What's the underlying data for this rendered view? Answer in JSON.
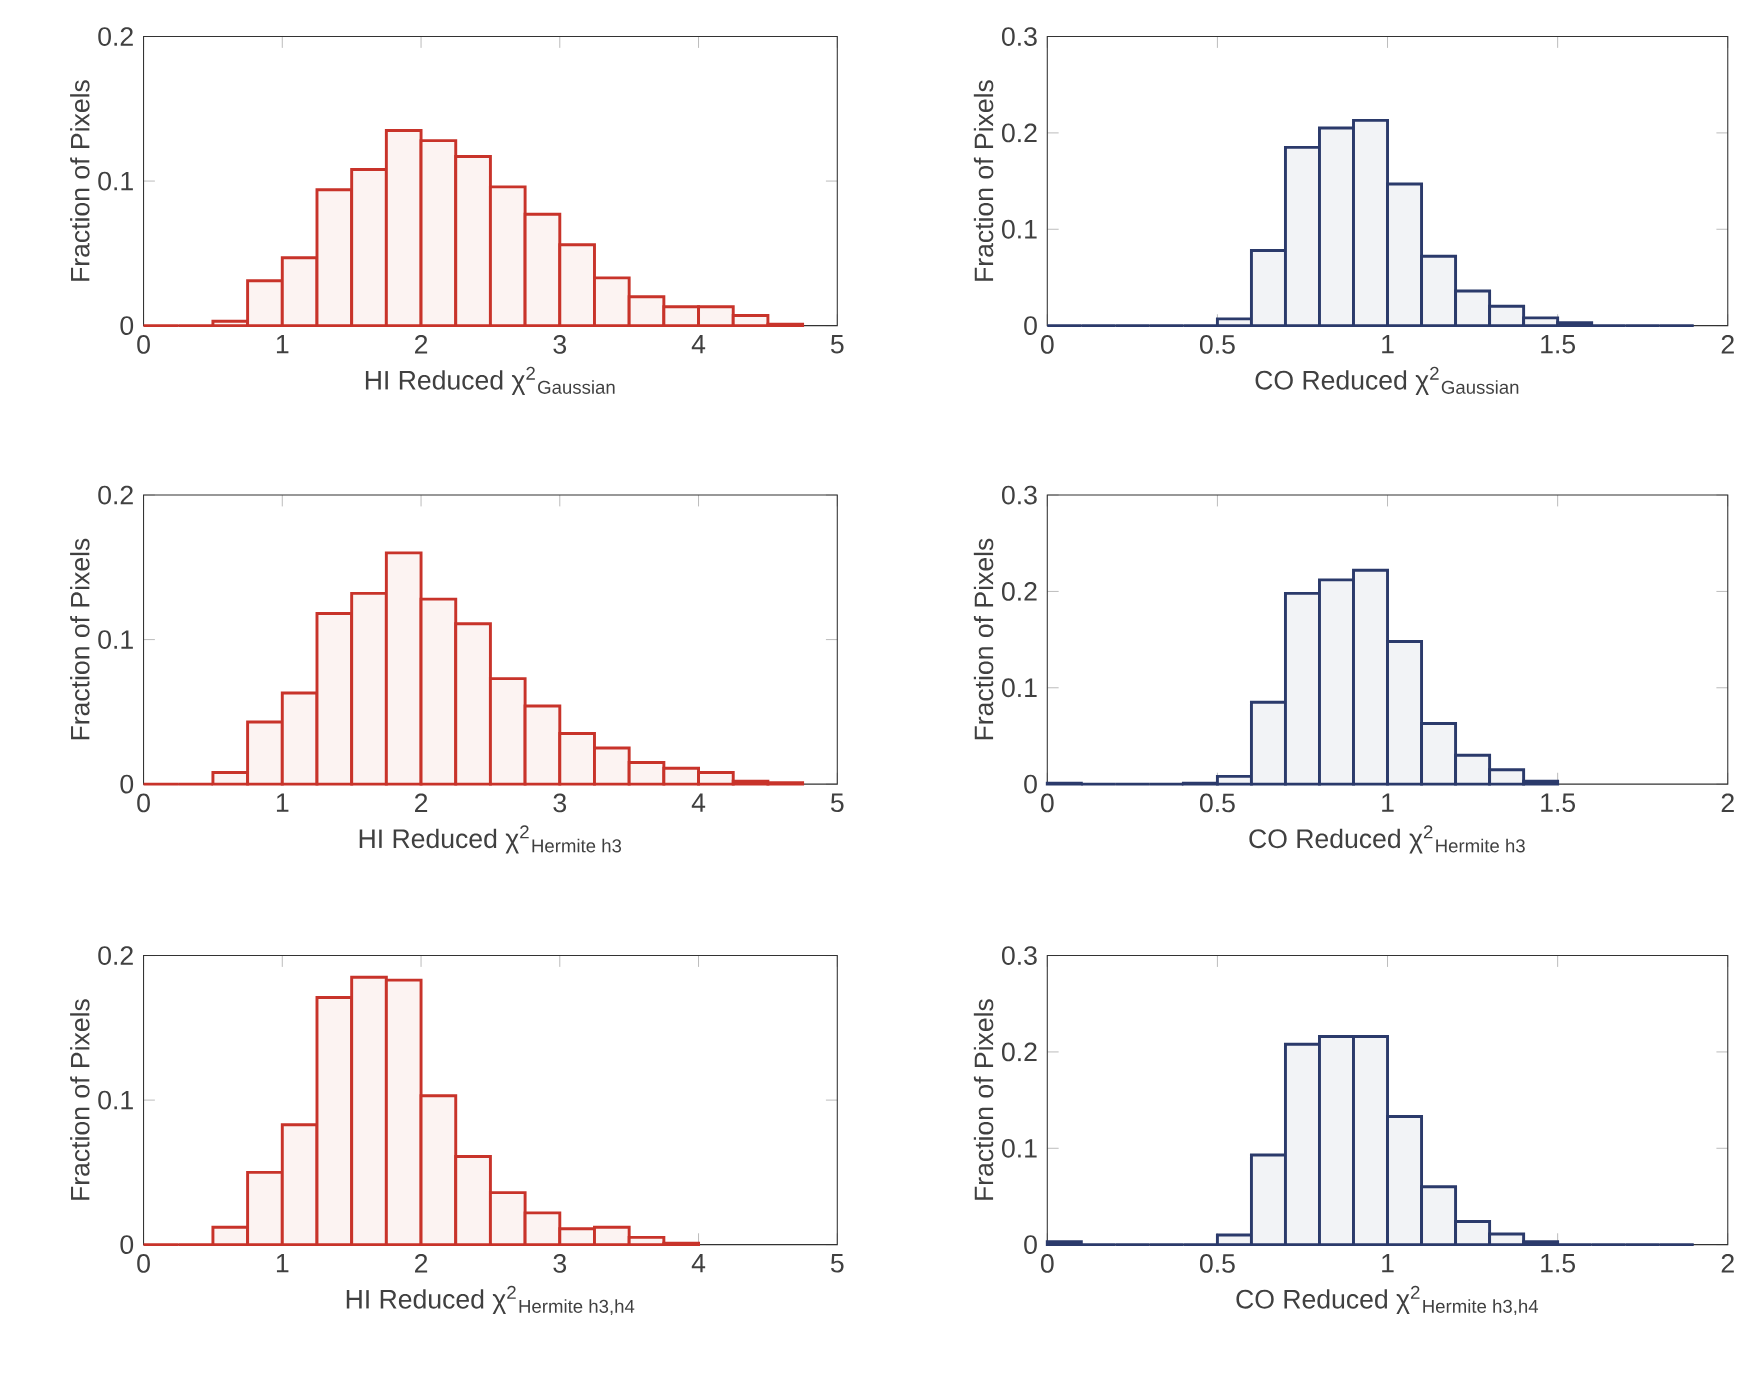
{
  "chart_data": [
    {
      "type": "histogram",
      "xlabel": "HI Reduced χ$^{2}$$_{Gaussian}$",
      "ylabel": "Fraction of Pixels",
      "color": "#c8332a",
      "bins": [
        0,
        0.25,
        0.5,
        0.75,
        1,
        1.25,
        1.5,
        1.75,
        2,
        2.25,
        2.5,
        2.75,
        3,
        3.25,
        3.5,
        3.75,
        4,
        4.25,
        4.5,
        4.75
      ],
      "values": [
        0,
        0,
        0.003,
        0.031,
        0.047,
        0.094,
        0.108,
        0.135,
        0.128,
        0.117,
        0.096,
        0.077,
        0.056,
        0.033,
        0.02,
        0.013,
        0.013,
        0.007,
        0.001
      ],
      "xlim": [
        0,
        5
      ],
      "ylim": [
        0,
        0.2
      ],
      "xticks": [
        0,
        1,
        2,
        3,
        4,
        5
      ],
      "yticks": [
        0,
        0.1,
        0.2
      ]
    },
    {
      "type": "histogram",
      "xlabel": "CO Reduced χ$^{2}$$_{Gaussian}$",
      "ylabel": "Fraction of Pixels",
      "color": "#2b3a6b",
      "bins": [
        0,
        0.1,
        0.2,
        0.3,
        0.4,
        0.5,
        0.6,
        0.7,
        0.8,
        0.9,
        1,
        1.1,
        1.2,
        1.3,
        1.4,
        1.5,
        1.6,
        1.7,
        1.8,
        1.9
      ],
      "values": [
        0,
        0,
        0,
        0,
        0,
        0.007,
        0.078,
        0.185,
        0.205,
        0.213,
        0.147,
        0.072,
        0.036,
        0.02,
        0.008,
        0.003,
        0,
        0,
        0
      ],
      "xlim": [
        0,
        2
      ],
      "ylim": [
        0,
        0.3
      ],
      "xticks": [
        0,
        0.5,
        1,
        1.5,
        2
      ],
      "yticks": [
        0,
        0.1,
        0.2,
        0.3
      ]
    },
    {
      "type": "histogram",
      "xlabel": "HI Reduced χ$^{2}$$_{Hermite h3}$",
      "ylabel": "Fraction of Pixels",
      "color": "#c8332a",
      "bins": [
        0,
        0.25,
        0.5,
        0.75,
        1,
        1.25,
        1.5,
        1.75,
        2,
        2.25,
        2.5,
        2.75,
        3,
        3.25,
        3.5,
        3.75,
        4,
        4.25,
        4.5,
        4.75
      ],
      "values": [
        0,
        0,
        0.008,
        0.043,
        0.063,
        0.118,
        0.132,
        0.16,
        0.128,
        0.111,
        0.073,
        0.054,
        0.035,
        0.025,
        0.015,
        0.011,
        0.008,
        0.002,
        0.001
      ],
      "xlim": [
        0,
        5
      ],
      "ylim": [
        0,
        0.2
      ],
      "xticks": [
        0,
        1,
        2,
        3,
        4,
        5
      ],
      "yticks": [
        0,
        0.1,
        0.2
      ]
    },
    {
      "type": "histogram",
      "xlabel": "CO Reduced χ$^{2}$$_{Hermite h3}$",
      "ylabel": "Fraction of Pixels",
      "color": "#2b3a6b",
      "bins": [
        0,
        0.1,
        0.2,
        0.3,
        0.4,
        0.5,
        0.6,
        0.7,
        0.8,
        0.9,
        1,
        1.1,
        1.2,
        1.3,
        1.4,
        1.5
      ],
      "values": [
        0.001,
        0,
        0,
        0,
        0.001,
        0.008,
        0.085,
        0.198,
        0.212,
        0.222,
        0.148,
        0.063,
        0.03,
        0.015,
        0.003
      ],
      "xlim": [
        0,
        2
      ],
      "ylim": [
        0,
        0.3
      ],
      "xticks": [
        0,
        0.5,
        1,
        1.5,
        2
      ],
      "yticks": [
        0,
        0.1,
        0.2,
        0.3
      ]
    },
    {
      "type": "histogram",
      "xlabel": "HI Reduced χ$^{2}$$_{Hermite h3,h4}$",
      "ylabel": "Fraction of Pixels",
      "color": "#c8332a",
      "bins": [
        0,
        0.25,
        0.5,
        0.75,
        1,
        1.25,
        1.5,
        1.75,
        2,
        2.25,
        2.5,
        2.75,
        3,
        3.25,
        3.5,
        3.75,
        4
      ],
      "values": [
        0,
        0,
        0.012,
        0.05,
        0.083,
        0.171,
        0.185,
        0.183,
        0.103,
        0.061,
        0.036,
        0.022,
        0.011,
        0.012,
        0.005,
        0.001
      ],
      "xlim": [
        0,
        5
      ],
      "ylim": [
        0,
        0.2
      ],
      "xticks": [
        0,
        1,
        2,
        3,
        4,
        5
      ],
      "yticks": [
        0,
        0.1,
        0.2
      ]
    },
    {
      "type": "histogram",
      "xlabel": "CO Reduced χ$^{2}$$_{Hermite h3,h4}$",
      "ylabel": "Fraction of Pixels",
      "color": "#2b3a6b",
      "bins": [
        0,
        0.1,
        0.2,
        0.3,
        0.4,
        0.5,
        0.6,
        0.7,
        0.8,
        0.9,
        1,
        1.1,
        1.2,
        1.3,
        1.4,
        1.5,
        1.6,
        1.7,
        1.8,
        1.9
      ],
      "values": [
        0.003,
        0,
        0,
        0,
        0,
        0.01,
        0.093,
        0.208,
        0.216,
        0.216,
        0.133,
        0.06,
        0.024,
        0.011,
        0.003,
        0,
        0,
        0,
        0
      ],
      "xlim": [
        0,
        2
      ],
      "ylim": [
        0,
        0.3
      ],
      "xticks": [
        0,
        0.5,
        1,
        1.5,
        2
      ],
      "yticks": [
        0,
        0.1,
        0.2,
        0.3
      ]
    }
  ]
}
